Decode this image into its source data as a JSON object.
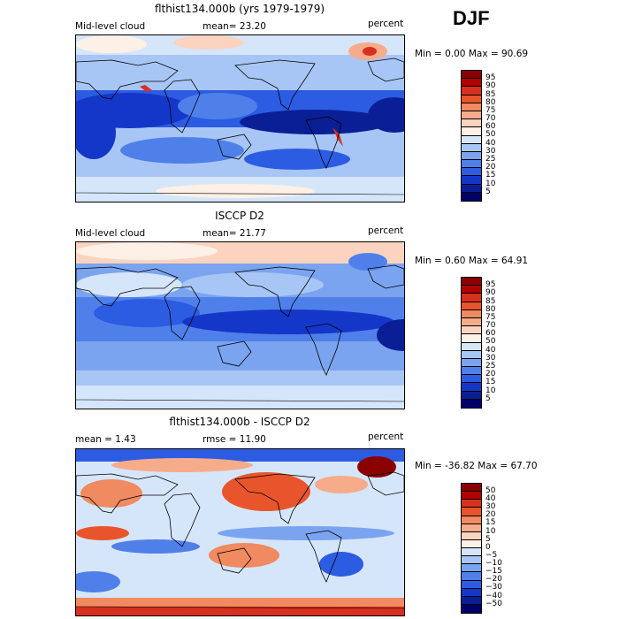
{
  "season": "DJF",
  "panels": [
    {
      "title": "flthist134.000b (yrs 1979-1979)",
      "left_label": "Mid-level cloud",
      "center_label": "mean=  23.20",
      "right_label": "percent",
      "minmax": "Min =   0.00 Max =  90.69",
      "colorbar_labels": [
        "95",
        "90",
        "85",
        "80",
        "75",
        "70",
        "60",
        "50",
        "40",
        "30",
        "25",
        "20",
        "15",
        "10",
        "5"
      ],
      "colorbar_colors": [
        "#8b0000",
        "#b30000",
        "#d7301f",
        "#e8552c",
        "#f08a60",
        "#f6ac8a",
        "#fbd3bf",
        "#fdf0e6",
        "#d6e6fa",
        "#a8c6f5",
        "#7aa4ef",
        "#4f80ea",
        "#2c5ce2",
        "#1537c9",
        "#0a1f96",
        "#00006b"
      ]
    },
    {
      "title": "ISCCP D2",
      "left_label": "Mid-level cloud",
      "center_label": "mean=  21.77",
      "right_label": "percent",
      "minmax": "Min =   0.60 Max =  64.91",
      "colorbar_labels": [
        "95",
        "90",
        "85",
        "80",
        "75",
        "70",
        "60",
        "50",
        "40",
        "30",
        "25",
        "20",
        "15",
        "10",
        "5"
      ],
      "colorbar_colors": [
        "#8b0000",
        "#b30000",
        "#d7301f",
        "#e8552c",
        "#f08a60",
        "#f6ac8a",
        "#fbd3bf",
        "#fdf0e6",
        "#d6e6fa",
        "#a8c6f5",
        "#7aa4ef",
        "#4f80ea",
        "#2c5ce2",
        "#1537c9",
        "#0a1f96",
        "#00006b"
      ]
    },
    {
      "title": "flthist134.000b - ISCCP D2",
      "left_label": "mean =    1.43",
      "center_label": "rmse =   11.90",
      "right_label": "percent",
      "minmax": "Min = -36.82 Max =  67.70",
      "colorbar_labels": [
        "50",
        "40",
        "30",
        "20",
        "15",
        "10",
        "5",
        "0",
        "−5",
        "−10",
        "−15",
        "−20",
        "−30",
        "−40",
        "−50"
      ],
      "colorbar_colors": [
        "#8b0000",
        "#b30000",
        "#d7301f",
        "#e8552c",
        "#f08a60",
        "#f6ac8a",
        "#fbd3bf",
        "#fdf0e6",
        "#d6e6fa",
        "#a8c6f5",
        "#7aa4ef",
        "#4f80ea",
        "#2c5ce2",
        "#1537c9",
        "#0a1f96",
        "#00006b"
      ]
    }
  ]
}
